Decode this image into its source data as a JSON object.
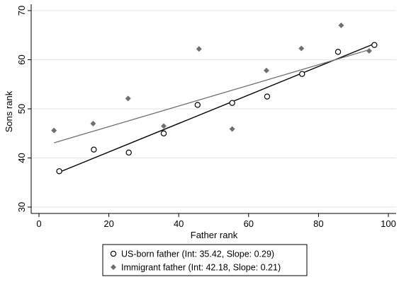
{
  "chart_data": {
    "type": "scatter",
    "title": "",
    "xlabel": "Father rank",
    "ylabel": "Sons rank",
    "xlim": [
      0,
      100
    ],
    "ylim": [
      30,
      70
    ],
    "xticks": [
      0,
      20,
      40,
      60,
      80,
      100
    ],
    "yticks": [
      30,
      40,
      50,
      60,
      70
    ],
    "grid": "horizontal",
    "legend_position": "bottom",
    "series": [
      {
        "name": "US-born father (Int: 35.42, Slope: 0.29)",
        "marker": "hollow-circle",
        "color": "#000000",
        "x": [
          5.8,
          15.7,
          25.7,
          35.7,
          45.4,
          55.3,
          65.3,
          75.3,
          85.6,
          96.0
        ],
        "y": [
          37.3,
          41.7,
          41.1,
          45.0,
          50.8,
          51.2,
          52.5,
          57.1,
          61.6,
          63.0
        ],
        "fit": {
          "intercept": 35.42,
          "slope": 0.29,
          "x_range": [
            5.8,
            96.0
          ]
        }
      },
      {
        "name": "Immigrant father (Int: 42.18, Slope: 0.21)",
        "marker": "diamond",
        "color": "#707070",
        "x": [
          4.3,
          15.5,
          25.5,
          35.7,
          45.8,
          55.3,
          65.1,
          75.1,
          86.5,
          94.5
        ],
        "y": [
          45.6,
          47.0,
          52.1,
          46.5,
          62.2,
          45.9,
          57.8,
          62.3,
          67.0,
          61.8
        ],
        "fit": {
          "intercept": 42.18,
          "slope": 0.21,
          "x_range": [
            4.3,
            94.5
          ]
        }
      }
    ]
  }
}
